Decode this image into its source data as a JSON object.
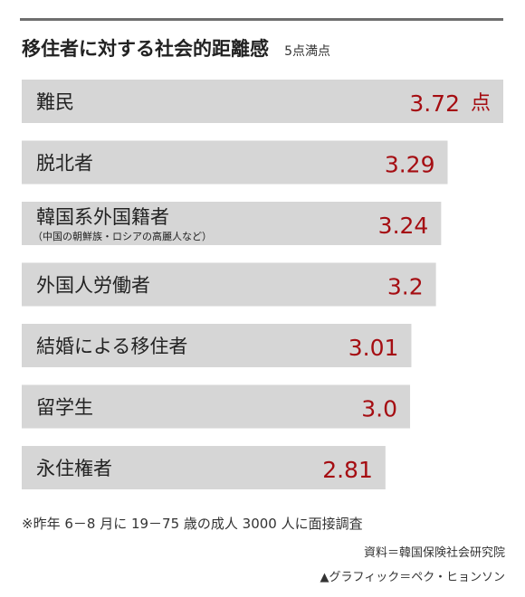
{
  "chart_data": {
    "type": "bar",
    "orientation": "horizontal",
    "title": "移住者に対する社会的距離感",
    "subtitle": "5点満点",
    "categories": [
      "難民",
      "脱北者",
      "韓国系外国籍者",
      "外国人労働者",
      "結婚による移住者",
      "留学生",
      "永住権者"
    ],
    "category_notes": [
      "",
      "",
      "（中国の朝鮮族・ロシアの高麗人など）",
      "",
      "",
      "",
      ""
    ],
    "values": [
      3.72,
      3.29,
      3.24,
      3.2,
      3.01,
      3.0,
      2.81
    ],
    "value_labels": [
      "3.72",
      "3.29",
      "3.24",
      "3.2",
      "3.01",
      "3.0",
      "2.81"
    ],
    "unit_first": "点",
    "xlim": [
      0,
      3.72
    ],
    "grid": false,
    "colors": {
      "bar": "#d6d6d6",
      "value_text": "#a50d12",
      "label_text": "#222222"
    }
  },
  "footer": {
    "note": "※昨年 6－8 月に 19－75 歳の成人 3000 人に面接調査",
    "source": "資料＝韓国保険社会研究院",
    "credit": "▲グラフィック＝ペク・ヒョンソン"
  }
}
